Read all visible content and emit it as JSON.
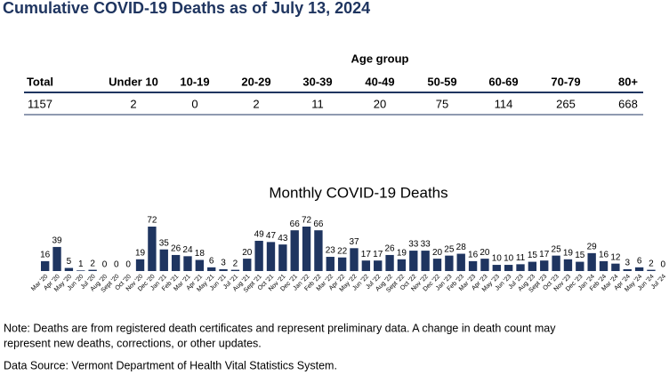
{
  "header": {
    "title": "Cumulative COVID-19 Deaths as of July 13, 2024"
  },
  "table": {
    "group_label": "Age group",
    "columns": [
      "Total",
      "Under 10",
      "10-19",
      "20-29",
      "30-39",
      "40-49",
      "50-59",
      "60-69",
      "70-79",
      "80+"
    ],
    "rows": [
      [
        "1157",
        "2",
        "0",
        "2",
        "11",
        "20",
        "75",
        "114",
        "265",
        "668"
      ]
    ]
  },
  "chart_data": {
    "type": "bar",
    "title": "Monthly COVID-19 Deaths",
    "color": "#1f3560",
    "categories": [
      "Mar '20",
      "Apr '20",
      "May '20",
      "Jun '20",
      "Jul '20",
      "Aug '20",
      "Sept '20",
      "Oct '20",
      "Nov '20",
      "Dec '20",
      "Jan '21",
      "Feb '21",
      "Mar '21",
      "Apr '21",
      "May '21",
      "Jun '21",
      "Jul '21",
      "Aug '21",
      "Sept '21",
      "Oct '21",
      "Nov '21",
      "Dec '21",
      "Jan '22",
      "Feb '22",
      "Mar '22",
      "Apr '22",
      "May '22",
      "Jun '22",
      "Jul '22",
      "Aug '22",
      "Sept '22",
      "Oct '22",
      "Nov '22",
      "Dec '22",
      "Jan '23",
      "Feb '23",
      "Mar '23",
      "Apr '23",
      "May '23",
      "Jun '23",
      "Jul '23",
      "Aug '23",
      "Sept '23",
      "Oct '23",
      "Nov '23",
      "Dec '23",
      "Jan '24",
      "Feb '24",
      "Mar '24",
      "Apr '24",
      "May '24",
      "Jun '24",
      "Jul '24"
    ],
    "values": [
      16,
      39,
      5,
      1,
      2,
      0,
      0,
      0,
      19,
      72,
      35,
      26,
      24,
      18,
      6,
      3,
      2,
      20,
      49,
      47,
      43,
      66,
      72,
      66,
      23,
      22,
      37,
      17,
      17,
      26,
      19,
      33,
      33,
      20,
      25,
      28,
      16,
      20,
      10,
      10,
      11,
      15,
      17,
      25,
      19,
      15,
      29,
      16,
      12,
      3,
      6,
      2,
      0
    ]
  },
  "notes": [
    "Note: Deaths are from registered death certificates and represent preliminary data. A change in death count may",
    "represent new deaths, corrections, or other updates.",
    "Data Source: Vermont Department of Health Vital Statistics System."
  ]
}
